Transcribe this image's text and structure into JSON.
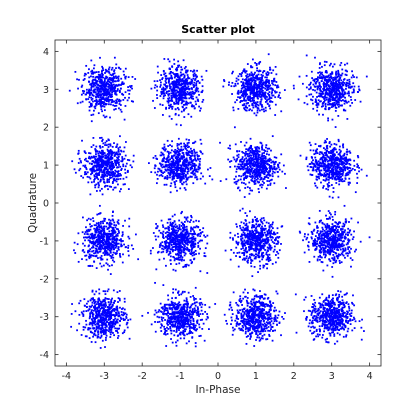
{
  "chart_data": {
    "type": "scatter",
    "title": "Scatter plot",
    "xlabel": "In-Phase",
    "ylabel": "Quadrature",
    "xlim": [
      -4.3,
      4.3
    ],
    "ylim": [
      -4.3,
      4.3
    ],
    "xticks": [
      -4,
      -3,
      -2,
      -1,
      0,
      1,
      2,
      3,
      4
    ],
    "yticks": [
      -4,
      -3,
      -2,
      -1,
      0,
      1,
      2,
      3,
      4
    ],
    "grid": false,
    "legend": "none",
    "marker_color": "#0000ff",
    "series": [
      {
        "clusters": [
          {
            "x": -3,
            "y": 3
          },
          {
            "x": -1,
            "y": 3
          },
          {
            "x": 1,
            "y": 3
          },
          {
            "x": 3,
            "y": 3
          },
          {
            "x": -3,
            "y": 1
          },
          {
            "x": -1,
            "y": 1
          },
          {
            "x": 1,
            "y": 1
          },
          {
            "x": 3,
            "y": 1
          },
          {
            "x": -3,
            "y": -1
          },
          {
            "x": -1,
            "y": -1
          },
          {
            "x": 1,
            "y": -1
          },
          {
            "x": 3,
            "y": -1
          },
          {
            "x": -3,
            "y": -3
          },
          {
            "x": -1,
            "y": -3
          },
          {
            "x": 1,
            "y": -3
          },
          {
            "x": 3,
            "y": -3
          }
        ],
        "spread_sd": 0.28,
        "points_per_cluster": 550
      }
    ]
  }
}
